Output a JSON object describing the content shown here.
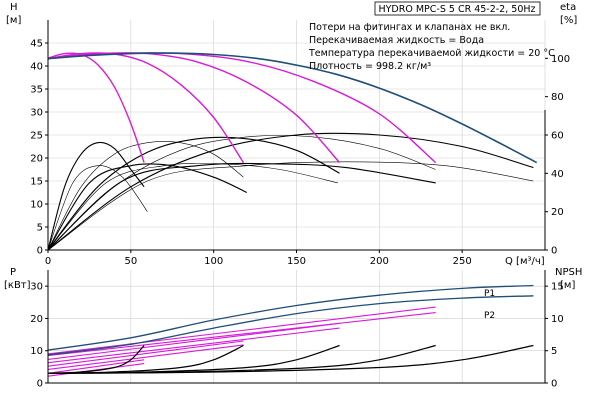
{
  "header": {
    "title": "HYDRO MPC-S 5 CR 45-2-2, 50Hz",
    "info_lines": [
      "Потери на фитингах и клапанах не вкл.",
      "Перекачиваемая жидкость = Вода",
      "Температура перекачиваемой жидкости = 20 °C",
      "Плотность = 998.2 кг/м³"
    ]
  },
  "colors": {
    "head_curve": "#1f4e79",
    "partial_head": "#d81bd8",
    "efficiency": "#000000",
    "power_p1": "#1f4e79",
    "power_p2": "#1f4e79",
    "partial_power": "#d81bd8",
    "npsh": "#000000",
    "grid": "#cfcfcf"
  },
  "chart_data": [
    {
      "type": "line",
      "name": "head-efficiency",
      "xlabel": "Q [м³/ч]",
      "ylabel_left": "H [м]",
      "ylabel_right": "eta [%]",
      "xlim": [
        0,
        300
      ],
      "ylim_left": [
        0,
        50
      ],
      "ylim_right": [
        0,
        120
      ],
      "x_ticks": [
        0,
        50,
        100,
        150,
        200,
        250
      ],
      "y_ticks_left": [
        0,
        5,
        10,
        15,
        20,
        25,
        30,
        35,
        40,
        45
      ],
      "y_ticks_right": [
        0,
        20,
        40,
        60,
        80,
        100
      ],
      "grid": true,
      "head_full": {
        "x": [
          0,
          25,
          50,
          75,
          100,
          125,
          150,
          175,
          200,
          225,
          250,
          275,
          295
        ],
        "y": [
          41.6,
          42.3,
          42.7,
          42.8,
          42.5,
          41.7,
          40.2,
          38.1,
          35.2,
          31.6,
          27.4,
          22.8,
          19.0
        ]
      },
      "head_partial": [
        {
          "x": [
            0,
            10,
            20,
            30,
            40,
            50,
            58
          ],
          "y": [
            41.7,
            42.7,
            42.5,
            40.3,
            35.5,
            27.5,
            19.0
          ]
        },
        {
          "x": [
            0,
            20,
            40,
            60,
            80,
            100,
            118
          ],
          "y": [
            41.6,
            42.7,
            42.6,
            40.6,
            36.0,
            28.8,
            19.0
          ]
        },
        {
          "x": [
            0,
            30,
            60,
            90,
            120,
            150,
            176
          ],
          "y": [
            41.6,
            42.7,
            42.7,
            40.9,
            36.5,
            29.3,
            19.0
          ]
        },
        {
          "x": [
            0,
            40,
            80,
            120,
            160,
            200,
            234
          ],
          "y": [
            41.6,
            42.7,
            42.7,
            41.0,
            36.7,
            29.6,
            19.0
          ]
        }
      ],
      "efficiency": [
        {
          "x": [
            0,
            10,
            20,
            30,
            40,
            50,
            58
          ],
          "y": [
            0,
            33,
            50,
            56,
            53,
            42,
            33
          ]
        },
        {
          "x": [
            0,
            20,
            40,
            60,
            80,
            100,
            118
          ],
          "y": [
            0,
            33,
            50,
            56,
            56,
            50,
            38
          ]
        },
        {
          "x": [
            0,
            30,
            60,
            90,
            120,
            150,
            176
          ],
          "y": [
            0,
            33,
            51,
            58,
            58,
            52,
            40
          ]
        },
        {
          "x": [
            0,
            40,
            80,
            120,
            160,
            200,
            234
          ],
          "y": [
            0,
            33,
            52,
            59,
            59,
            53,
            42
          ]
        },
        {
          "x": [
            0,
            50,
            100,
            150,
            200,
            250,
            293
          ],
          "y": [
            0,
            33,
            52,
            60,
            60,
            54,
            43
          ]
        },
        {
          "x": [
            0,
            15,
            30,
            45,
            60
          ],
          "y": [
            0,
            35,
            44,
            38,
            20
          ]
        },
        {
          "x": [
            0,
            25,
            50,
            75,
            100,
            120
          ],
          "y": [
            0,
            35,
            44,
            44,
            38,
            30
          ]
        },
        {
          "x": [
            0,
            35,
            70,
            105,
            140,
            175
          ],
          "y": [
            0,
            35,
            44,
            45,
            42,
            35
          ]
        },
        {
          "x": [
            0,
            45,
            90,
            135,
            180,
            234
          ],
          "y": [
            0,
            36,
            44,
            45,
            43,
            35
          ]
        },
        {
          "x": [
            0,
            60,
            120,
            180,
            240,
            293
          ],
          "y": [
            0,
            36,
            44,
            46,
            44,
            36
          ]
        }
      ]
    },
    {
      "type": "line",
      "name": "power-npsh",
      "ylabel_left": "P [кВт]",
      "ylabel_right": "NPSH [м]",
      "xlim": [
        0,
        300
      ],
      "ylim_left": [
        0,
        35
      ],
      "ylim_right": [
        0,
        17.5
      ],
      "y_ticks_left": [
        0,
        10,
        20,
        30
      ],
      "y_ticks_right": [
        0,
        5,
        10,
        15
      ],
      "grid": true,
      "series_labels": [
        "P1",
        "P2"
      ],
      "p1": {
        "x": [
          0,
          50,
          100,
          150,
          200,
          250,
          293
        ],
        "y": [
          10.2,
          14.0,
          19.5,
          24.0,
          27.2,
          29.3,
          30.2
        ]
      },
      "p2": {
        "x": [
          0,
          50,
          100,
          150,
          200,
          250,
          293
        ],
        "y": [
          8.7,
          12.0,
          17.0,
          21.5,
          24.6,
          26.3,
          27.0
        ]
      },
      "partial_power": [
        {
          "x": [
            0,
            58
          ],
          "y": [
            2.1,
            6.0
          ]
        },
        {
          "x": [
            0,
            58
          ],
          "y": [
            3.0,
            7.2
          ]
        },
        {
          "x": [
            0,
            118
          ],
          "y": [
            4.2,
            11.8
          ]
        },
        {
          "x": [
            0,
            118
          ],
          "y": [
            5.2,
            13.0
          ]
        },
        {
          "x": [
            0,
            176
          ],
          "y": [
            6.3,
            17.0
          ]
        },
        {
          "x": [
            0,
            176
          ],
          "y": [
            7.3,
            18.5
          ]
        },
        {
          "x": [
            0,
            234
          ],
          "y": [
            8.5,
            21.8
          ]
        },
        {
          "x": [
            0,
            234
          ],
          "y": [
            9.0,
            23.5
          ]
        }
      ],
      "npsh": [
        {
          "x": [
            0,
            20,
            40,
            50,
            58
          ],
          "y": [
            1.5,
            1.7,
            2.4,
            3.6,
            5.8
          ]
        },
        {
          "x": [
            0,
            40,
            80,
            100,
            118
          ],
          "y": [
            1.5,
            1.7,
            2.4,
            3.6,
            5.8
          ]
        },
        {
          "x": [
            0,
            60,
            120,
            150,
            176
          ],
          "y": [
            1.5,
            1.7,
            2.4,
            3.6,
            5.8
          ]
        },
        {
          "x": [
            0,
            80,
            160,
            200,
            234
          ],
          "y": [
            1.5,
            1.7,
            2.4,
            3.6,
            5.8
          ]
        },
        {
          "x": [
            0,
            100,
            200,
            250,
            293
          ],
          "y": [
            1.5,
            1.7,
            2.4,
            3.6,
            5.8
          ]
        }
      ]
    }
  ]
}
